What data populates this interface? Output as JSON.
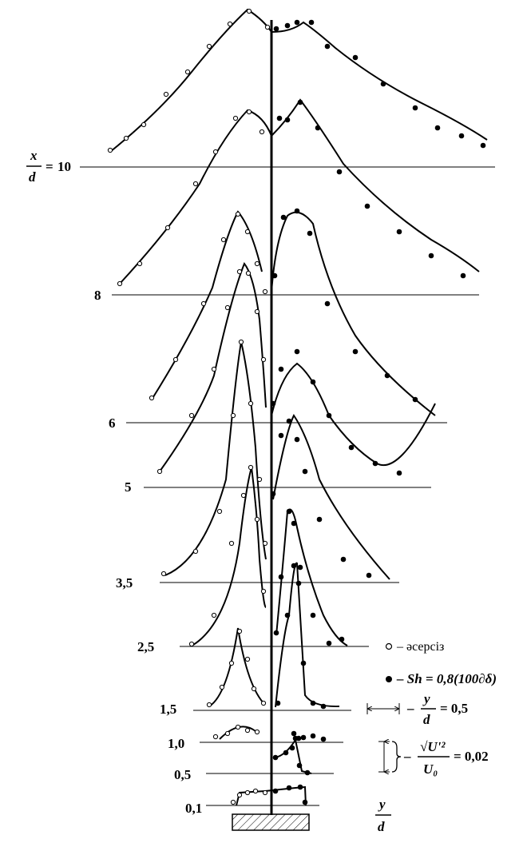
{
  "chart_data": {
    "type": "line",
    "stations": [
      {
        "label": "0,1"
      },
      {
        "label": "0,5"
      },
      {
        "label": "1,0"
      },
      {
        "label": "1,5"
      },
      {
        "label": "2,5"
      },
      {
        "label": "3,5"
      },
      {
        "label": "5"
      },
      {
        "label": "6"
      },
      {
        "label": "8"
      },
      {
        "label": "10",
        "prefix": "=",
        "top_label": "x",
        "bottom_label": "d"
      }
    ],
    "x_axis": {
      "top_label": "y",
      "bottom_label": "d"
    },
    "legend": {
      "open": {
        "text": "– әсерсіз"
      },
      "filled": {
        "text": "– Sh = 0,8(100∂δ)"
      }
    },
    "scales": {
      "horizontal": {
        "text_num": "y",
        "text_den": "d",
        "text_value": "= 0,5"
      },
      "vertical": {
        "text_num": "√U'²",
        "text_den": "U₀",
        "text_value": "= 0,02"
      }
    },
    "series": [
      {
        "marker": "open"
      },
      {
        "marker": "filled"
      }
    ]
  }
}
